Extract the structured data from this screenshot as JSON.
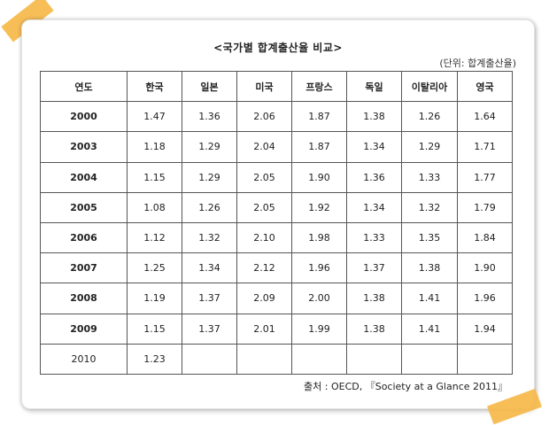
{
  "title": "<국가별 합계출산율 비교>",
  "unit": "(단위: 합계출산율)",
  "columns": [
    "연도",
    "한국",
    "일본",
    "미국",
    "프랑스",
    "독일",
    "이탈리아",
    "영국"
  ],
  "rows": [
    [
      "2000",
      "1.47",
      "1.36",
      "2.06",
      "1.87",
      "1.38",
      "1.26",
      "1.64"
    ],
    [
      "2003",
      "1.18",
      "1.29",
      "2.04",
      "1.87",
      "1.34",
      "1.29",
      "1.71"
    ],
    [
      "2004",
      "1.15",
      "1.29",
      "2.05",
      "1.90",
      "1.36",
      "1.33",
      "1.77"
    ],
    [
      "2005",
      "1.08",
      "1.26",
      "2.05",
      "1.92",
      "1.34",
      "1.32",
      "1.79"
    ],
    [
      "2006",
      "1.12",
      "1.32",
      "2.10",
      "1.98",
      "1.33",
      "1.35",
      "1.84"
    ],
    [
      "2007",
      "1.25",
      "1.34",
      "2.12",
      "1.96",
      "1.37",
      "1.38",
      "1.90"
    ],
    [
      "2008",
      "1.19",
      "1.37",
      "2.09",
      "2.00",
      "1.38",
      "1.41",
      "1.96"
    ],
    [
      "2009",
      "1.15",
      "1.37",
      "2.01",
      "1.99",
      "1.38",
      "1.41",
      "1.94"
    ],
    [
      "2010",
      "1.23",
      "",
      "",
      "",
      "",
      "",
      ""
    ]
  ],
  "source": "출처 : OECD, 『Society at a Glance 2011』"
}
